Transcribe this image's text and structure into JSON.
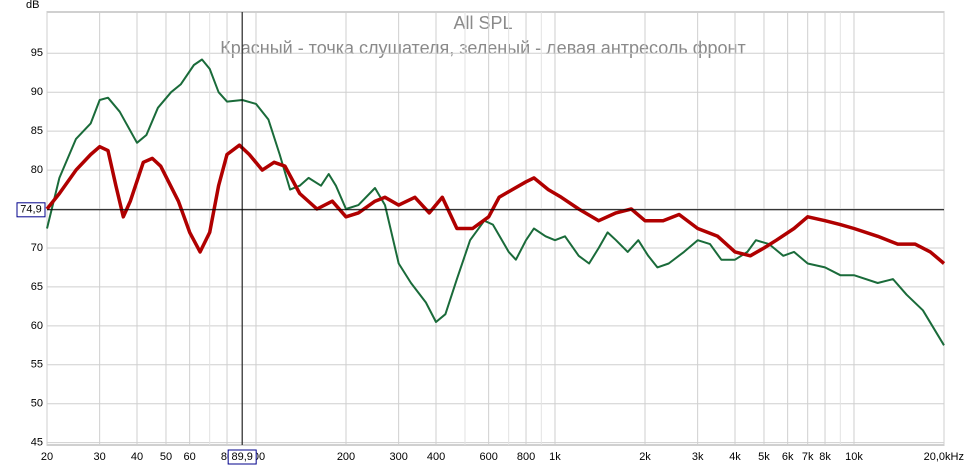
{
  "chart_data": {
    "type": "line",
    "title": "All SPL",
    "subtitle": "Красный - точка слушателя, зеленый - левая антресоль фронт",
    "ylabel": "dB",
    "xscale": "log",
    "xlim": [
      20,
      20000
    ],
    "ylim": [
      44.7,
      100.3
    ],
    "xticks": [
      20,
      30,
      40,
      50,
      60,
      80,
      100,
      200,
      300,
      400,
      600,
      800,
      {
        "value": 1000,
        "label": "1k"
      },
      {
        "value": 2000,
        "label": "2k"
      },
      {
        "value": 3000,
        "label": "3k"
      },
      {
        "value": 4000,
        "label": "4k"
      },
      {
        "value": 5000,
        "label": "5k"
      },
      {
        "value": 6000,
        "label": "6k"
      },
      {
        "value": 7000,
        "label": "7k"
      },
      {
        "value": 8000,
        "label": "8k"
      },
      {
        "value": 10000,
        "label": "10k"
      },
      {
        "value": 20000,
        "label": "20,0kHz"
      }
    ],
    "x_minor_ticks": [
      70,
      90,
      500,
      700,
      900,
      9000
    ],
    "yticks": [
      45,
      50,
      55,
      60,
      65,
      70,
      75,
      80,
      85,
      90,
      95
    ],
    "grid": true,
    "cursor": {
      "x": 89.9,
      "y": 74.9,
      "x_label": "89,9",
      "y_label": "74,9"
    },
    "series": [
      {
        "name": "Красный",
        "color": "#b00000",
        "x": [
          20,
          22,
          25,
          28,
          30,
          32,
          34,
          36,
          38,
          42,
          45,
          48,
          55,
          60,
          65,
          70,
          75,
          80,
          88,
          95,
          105,
          115,
          125,
          140,
          160,
          180,
          200,
          220,
          250,
          270,
          300,
          340,
          380,
          420,
          470,
          530,
          600,
          650,
          720,
          800,
          850,
          950,
          1050,
          1200,
          1400,
          1600,
          1800,
          2000,
          2300,
          2600,
          3000,
          3500,
          4000,
          4500,
          5000,
          5500,
          6300,
          7000,
          8000,
          9000,
          10000,
          12000,
          14000,
          16000,
          18000,
          20000
        ],
        "values": [
          75,
          77,
          80,
          82,
          83,
          82.5,
          78,
          74,
          76,
          81,
          81.5,
          80.5,
          76,
          72,
          69.5,
          72,
          78,
          82,
          83.2,
          82,
          80,
          81,
          80.5,
          77,
          75,
          76,
          74,
          74.5,
          76,
          76.5,
          75.5,
          76.5,
          74.5,
          76.5,
          72.5,
          72.5,
          74,
          76.5,
          77.5,
          78.5,
          79,
          77.5,
          76.5,
          75,
          73.5,
          74.5,
          75,
          73.5,
          73.5,
          74.3,
          72.5,
          71.5,
          69.5,
          69,
          70,
          71,
          72.5,
          74,
          73.5,
          73,
          72.5,
          71.5,
          70.5,
          70.5,
          69.5,
          68
        ]
      },
      {
        "name": "зеленый",
        "color": "#1a6b3a",
        "x": [
          20,
          22,
          25,
          28,
          30,
          32,
          35,
          40,
          43,
          47,
          52,
          56,
          62,
          66,
          70,
          75,
          80,
          90,
          100,
          110,
          120,
          130,
          140,
          150,
          165,
          175,
          185,
          200,
          220,
          250,
          270,
          300,
          330,
          370,
          400,
          430,
          470,
          520,
          580,
          620,
          700,
          740,
          800,
          850,
          930,
          1000,
          1080,
          1200,
          1300,
          1400,
          1500,
          1600,
          1750,
          1900,
          2050,
          2200,
          2400,
          2700,
          3000,
          3300,
          3600,
          4000,
          4400,
          4700,
          5200,
          5800,
          6300,
          7000,
          8000,
          9000,
          10000,
          12000,
          13500,
          15000,
          17000,
          20000
        ],
        "values": [
          72.5,
          79,
          84,
          86,
          89,
          89.3,
          87.5,
          83.5,
          84.5,
          88,
          90,
          91,
          93.5,
          94.2,
          93,
          90,
          88.8,
          89,
          88.5,
          86.5,
          82,
          77.5,
          78,
          79,
          78,
          79.5,
          78,
          75,
          75.5,
          77.7,
          75.5,
          68,
          65.5,
          63,
          60.5,
          61.5,
          66,
          71,
          73.5,
          73,
          69.5,
          68.5,
          71,
          72.5,
          71.5,
          71,
          71.5,
          69,
          68,
          70,
          72,
          71,
          69.5,
          71,
          69,
          67.5,
          68,
          69.5,
          71,
          70.5,
          68.5,
          68.5,
          69.5,
          71,
          70.5,
          69,
          69.5,
          68,
          67.5,
          66.5,
          66.5,
          65.5,
          66,
          64,
          62,
          57.5
        ]
      }
    ]
  }
}
